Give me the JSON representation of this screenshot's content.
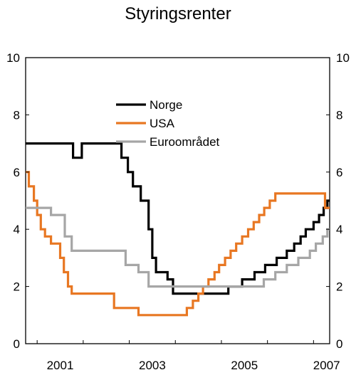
{
  "chart_data": {
    "type": "line",
    "title": "Styringsrenter",
    "xlabel": "",
    "ylabel": "",
    "xlim": [
      2000.75,
      2007.35
    ],
    "ylim": [
      0,
      10
    ],
    "y_ticks": [
      0,
      2,
      4,
      6,
      8,
      10
    ],
    "y_tick_labels": [
      "0",
      "2",
      "4",
      "6",
      "8",
      "10"
    ],
    "x_tick_labels": [
      {
        "value": 2001,
        "label": "2001"
      },
      {
        "value": 2003,
        "label": "2003"
      },
      {
        "value": 2005,
        "label": "2005"
      },
      {
        "value": 2007,
        "label": "2007"
      }
    ],
    "grid": false,
    "legend_position": "top-center",
    "step": true,
    "series": [
      {
        "name": "Norge",
        "color": "#000000",
        "points": [
          [
            2000.75,
            7.0
          ],
          [
            2001.78,
            6.5
          ],
          [
            2001.97,
            7.0
          ],
          [
            2002.83,
            6.5
          ],
          [
            2002.97,
            6.0
          ],
          [
            2003.08,
            5.5
          ],
          [
            2003.25,
            5.0
          ],
          [
            2003.42,
            4.0
          ],
          [
            2003.5,
            3.0
          ],
          [
            2003.58,
            2.5
          ],
          [
            2003.83,
            2.25
          ],
          [
            2003.95,
            1.75
          ],
          [
            2005.15,
            2.0
          ],
          [
            2005.45,
            2.25
          ],
          [
            2005.72,
            2.5
          ],
          [
            2005.95,
            2.75
          ],
          [
            2006.2,
            3.0
          ],
          [
            2006.42,
            3.25
          ],
          [
            2006.58,
            3.5
          ],
          [
            2006.72,
            3.75
          ],
          [
            2006.83,
            4.0
          ],
          [
            2007.0,
            4.25
          ],
          [
            2007.12,
            4.5
          ],
          [
            2007.22,
            4.75
          ],
          [
            2007.3,
            5.0
          ]
        ]
      },
      {
        "name": "USA",
        "color": "#E87722",
        "points": [
          [
            2000.75,
            6.0
          ],
          [
            2000.82,
            5.5
          ],
          [
            2000.93,
            5.0
          ],
          [
            2001.0,
            4.5
          ],
          [
            2001.08,
            4.0
          ],
          [
            2001.17,
            3.75
          ],
          [
            2001.3,
            3.5
          ],
          [
            2001.5,
            3.0
          ],
          [
            2001.58,
            2.5
          ],
          [
            2001.67,
            2.0
          ],
          [
            2001.75,
            1.75
          ],
          [
            2002.67,
            1.25
          ],
          [
            2003.2,
            1.0
          ],
          [
            2004.25,
            1.25
          ],
          [
            2004.38,
            1.5
          ],
          [
            2004.5,
            1.75
          ],
          [
            2004.6,
            2.0
          ],
          [
            2004.72,
            2.25
          ],
          [
            2004.85,
            2.5
          ],
          [
            2004.95,
            2.75
          ],
          [
            2005.08,
            3.0
          ],
          [
            2005.2,
            3.25
          ],
          [
            2005.32,
            3.5
          ],
          [
            2005.45,
            3.75
          ],
          [
            2005.58,
            4.0
          ],
          [
            2005.7,
            4.25
          ],
          [
            2005.82,
            4.5
          ],
          [
            2005.93,
            4.75
          ],
          [
            2006.05,
            5.0
          ],
          [
            2006.17,
            5.25
          ],
          [
            2007.25,
            4.75
          ]
        ]
      },
      {
        "name": "Euroområdet",
        "color": "#A6A6A6",
        "points": [
          [
            2000.75,
            4.75
          ],
          [
            2001.3,
            4.5
          ],
          [
            2001.6,
            3.75
          ],
          [
            2001.75,
            3.25
          ],
          [
            2002.92,
            2.75
          ],
          [
            2003.2,
            2.5
          ],
          [
            2003.42,
            2.0
          ],
          [
            2005.92,
            2.25
          ],
          [
            2006.17,
            2.5
          ],
          [
            2006.42,
            2.75
          ],
          [
            2006.67,
            3.0
          ],
          [
            2006.92,
            3.25
          ],
          [
            2007.05,
            3.5
          ],
          [
            2007.2,
            3.75
          ],
          [
            2007.3,
            4.0
          ]
        ]
      }
    ]
  }
}
